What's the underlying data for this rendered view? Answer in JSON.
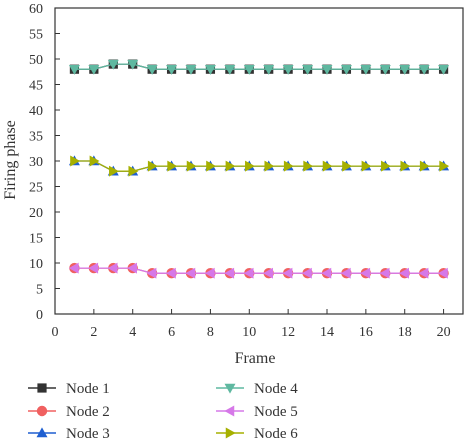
{
  "chart_data": {
    "type": "line",
    "xlabel": "Frame",
    "ylabel": "Firing phase",
    "xlim": [
      0,
      21
    ],
    "ylim": [
      0,
      60
    ],
    "xticks": [
      0,
      2,
      4,
      6,
      8,
      10,
      12,
      14,
      16,
      18,
      20
    ],
    "yticks": [
      0,
      5,
      10,
      15,
      20,
      25,
      30,
      35,
      40,
      45,
      50,
      55,
      60
    ],
    "grid": false,
    "legend_position": "bottom",
    "x": [
      1,
      2,
      3,
      4,
      5,
      6,
      7,
      8,
      9,
      10,
      11,
      12,
      13,
      14,
      15,
      16,
      17,
      18,
      19,
      20
    ],
    "series": [
      {
        "name": "Node 1",
        "color": "#333333",
        "marker": "square",
        "values": [
          48,
          48,
          49,
          49,
          48,
          48,
          48,
          48,
          48,
          48,
          48,
          48,
          48,
          48,
          48,
          48,
          48,
          48,
          48,
          48
        ]
      },
      {
        "name": "Node 2",
        "color": "#f06060",
        "marker": "circle",
        "values": [
          9,
          9,
          9,
          9,
          8,
          8,
          8,
          8,
          8,
          8,
          8,
          8,
          8,
          8,
          8,
          8,
          8,
          8,
          8,
          8
        ]
      },
      {
        "name": "Node 3",
        "color": "#1f5fd1",
        "marker": "triangle-up",
        "values": [
          30,
          30,
          28,
          28,
          29,
          29,
          29,
          29,
          29,
          29,
          29,
          29,
          29,
          29,
          29,
          29,
          29,
          29,
          29,
          29
        ]
      },
      {
        "name": "Node 4",
        "color": "#5fb8a0",
        "marker": "triangle-down",
        "values": [
          48,
          48,
          49,
          49,
          48,
          48,
          48,
          48,
          48,
          48,
          48,
          48,
          48,
          48,
          48,
          48,
          48,
          48,
          48,
          48
        ]
      },
      {
        "name": "Node 5",
        "color": "#d678e8",
        "marker": "triangle-left",
        "values": [
          9,
          9,
          9,
          9,
          8,
          8,
          8,
          8,
          8,
          8,
          8,
          8,
          8,
          8,
          8,
          8,
          8,
          8,
          8,
          8
        ]
      },
      {
        "name": "Node 6",
        "color": "#a6b000",
        "marker": "triangle-right",
        "values": [
          30,
          30,
          28,
          28,
          29,
          29,
          29,
          29,
          29,
          29,
          29,
          29,
          29,
          29,
          29,
          29,
          29,
          29,
          29,
          29
        ]
      }
    ]
  }
}
